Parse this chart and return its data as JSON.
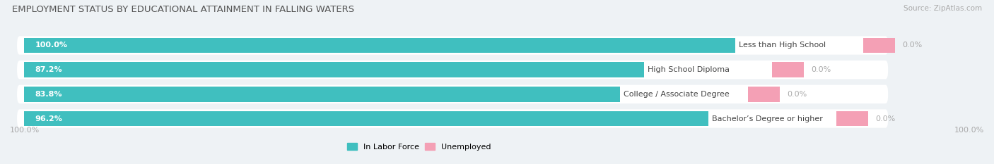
{
  "title": "EMPLOYMENT STATUS BY EDUCATIONAL ATTAINMENT IN FALLING WATERS",
  "source": "Source: ZipAtlas.com",
  "categories": [
    "Less than High School",
    "High School Diploma",
    "College / Associate Degree",
    "Bachelor’s Degree or higher"
  ],
  "labor_force": [
    100.0,
    87.2,
    83.8,
    96.2
  ],
  "unemployed": [
    0.0,
    0.0,
    0.0,
    0.0
  ],
  "labor_force_color": "#40bfbf",
  "unemployed_color": "#f4a0b5",
  "background_color": "#eef2f5",
  "bar_background": "#ffffff",
  "title_fontsize": 9.5,
  "source_fontsize": 7.5,
  "cat_fontsize": 8,
  "value_fontsize": 8,
  "legend_fontsize": 8,
  "axis_bottom_left": "100.0%",
  "axis_bottom_right": "100.0%",
  "bar_height": 0.62,
  "total_width": 100.0,
  "pink_bar_width": 4.5
}
